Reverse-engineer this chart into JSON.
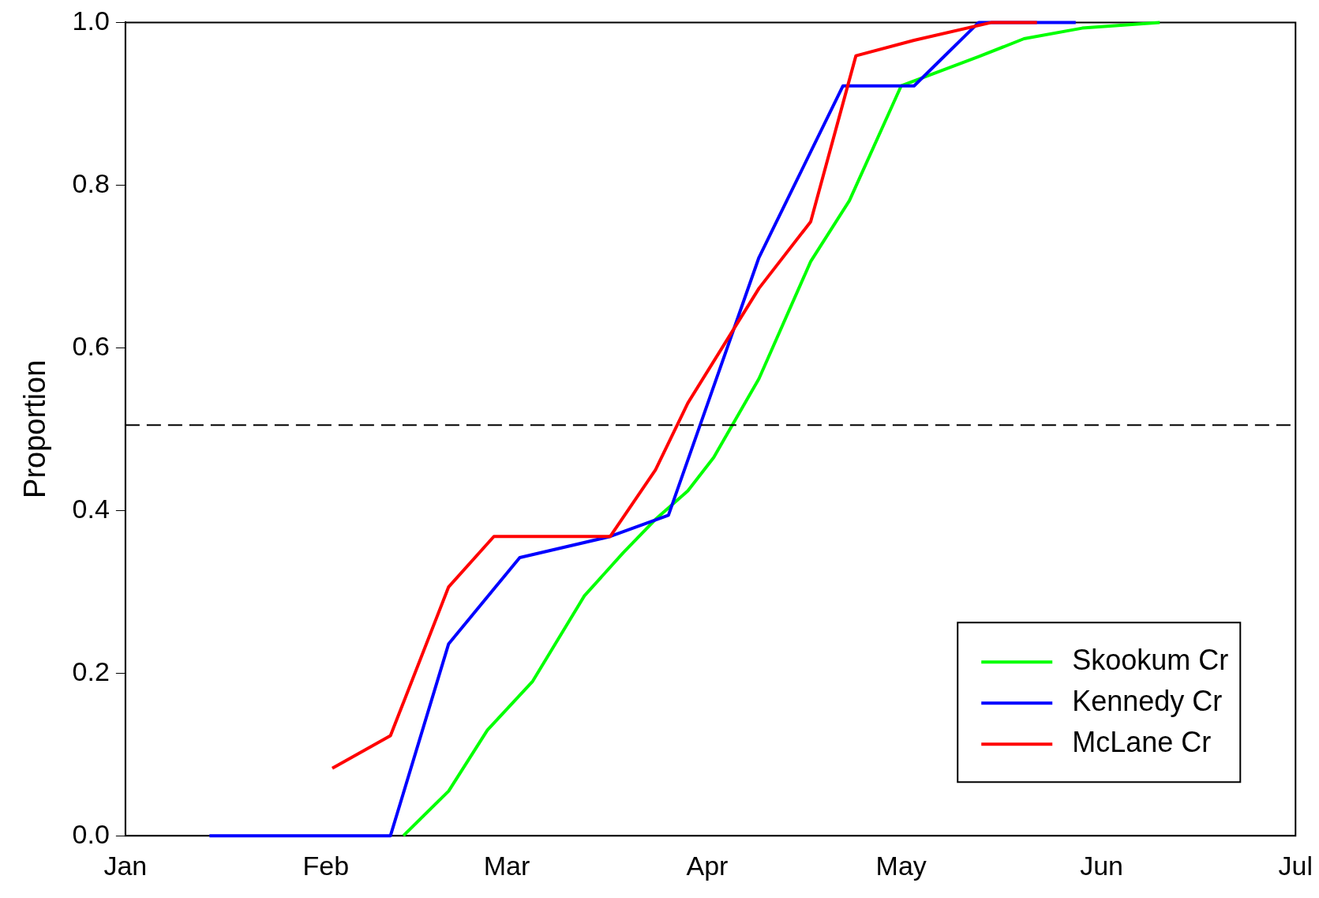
{
  "chart_data": {
    "type": "line",
    "ylabel": "Proportion",
    "xlim": [
      "--01-01",
      "--07-01"
    ],
    "xticks": [
      {
        "value": "--01-01",
        "label": "Jan"
      },
      {
        "value": "--02-01",
        "label": "Feb"
      },
      {
        "value": "--03-01",
        "label": "Mar"
      },
      {
        "value": "--04-01",
        "label": "Apr"
      },
      {
        "value": "--05-01",
        "label": "May"
      },
      {
        "value": "--06-01",
        "label": "Jun"
      },
      {
        "value": "--07-01",
        "label": "Jul"
      }
    ],
    "ylim": [
      0,
      1
    ],
    "yticks": [
      {
        "value": 0,
        "label": "0.0"
      },
      {
        "value": 0.2,
        "label": "0.2"
      },
      {
        "value": 0.4,
        "label": "0.4"
      },
      {
        "value": 0.6,
        "label": "0.6"
      },
      {
        "value": 0.8,
        "label": "0.8"
      },
      {
        "value": 1,
        "label": "1.0"
      }
    ],
    "legend": "bottom right",
    "grid": false,
    "marker": "none",
    "ref_lines": [
      {
        "axis": "y",
        "value": 0.505,
        "color": "#000000",
        "line_style": "dashed"
      }
    ],
    "series": [
      {
        "name": "Skookum Cr",
        "color": "#00ff00",
        "x": [
          "--02-13",
          "--02-20",
          "--02-26",
          "--03-05",
          "--03-13",
          "--03-19",
          "--03-24",
          "--03-29",
          "--04-02",
          "--04-09",
          "--04-17",
          "--04-23",
          "--05-01",
          "--05-13",
          "--05-20",
          "--05-29",
          "--06-10"
        ],
        "values": [
          0,
          0.055,
          0.13,
          0.19,
          0.295,
          0.348,
          0.389,
          0.424,
          0.465,
          0.562,
          0.706,
          0.781,
          0.922,
          0.958,
          0.98,
          0.993,
          1.0
        ]
      },
      {
        "name": "Kennedy Cr",
        "color": "#0000ff",
        "x": [
          "--01-14",
          "--02-11",
          "--02-20",
          "--03-03",
          "--03-17",
          "--03-26",
          "--04-09",
          "--04-22",
          "--05-03",
          "--05-13",
          "--05-28"
        ],
        "values": [
          0,
          0,
          0.236,
          0.342,
          0.368,
          0.394,
          0.711,
          0.922,
          0.922,
          1.0,
          1.0
        ]
      },
      {
        "name": "McLane Cr",
        "color": "#ff0000",
        "x": [
          "--02-02",
          "--02-11",
          "--02-20",
          "--02-27",
          "--03-17",
          "--03-24",
          "--03-29",
          "--04-09",
          "--04-17",
          "--04-24",
          "--05-03",
          "--05-15",
          "--05-22"
        ],
        "values": [
          0.083,
          0.123,
          0.306,
          0.368,
          0.368,
          0.45,
          0.532,
          0.673,
          0.755,
          0.959,
          0.978,
          1.0,
          1.0
        ]
      }
    ]
  }
}
